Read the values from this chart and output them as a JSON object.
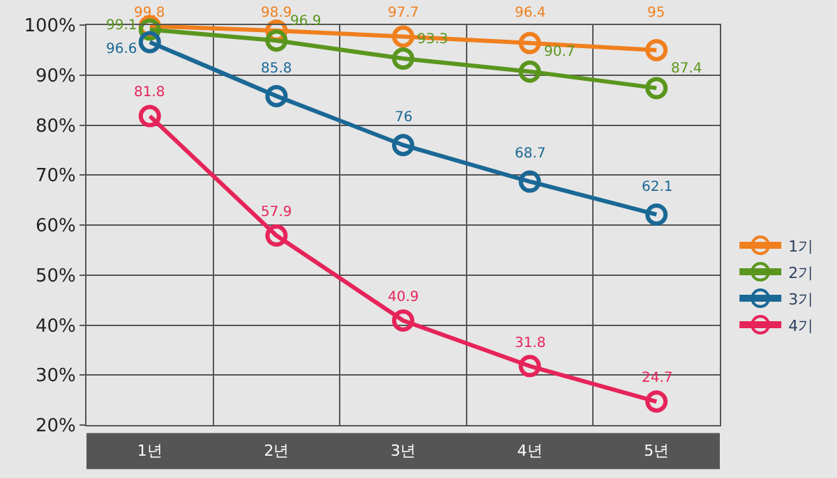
{
  "chart_data": {
    "type": "line",
    "categories": [
      "1년",
      "2년",
      "3년",
      "4년",
      "5년"
    ],
    "series": [
      {
        "name": "1기",
        "color": "#f07f1e",
        "values": [
          99.8,
          98.9,
          97.7,
          96.4,
          95
        ]
      },
      {
        "name": "2기",
        "color": "#5a961e",
        "values": [
          99.1,
          96.9,
          93.3,
          90.7,
          87.4
        ]
      },
      {
        "name": "3기",
        "color": "#1a6896",
        "values": [
          96.6,
          85.8,
          76,
          68.7,
          62.1
        ]
      },
      {
        "name": "4기",
        "color": "#e6245a",
        "values": [
          81.8,
          57.9,
          40.9,
          31.8,
          24.7
        ]
      }
    ],
    "ylim": [
      20,
      100
    ],
    "yticks": [
      {
        "value": 20,
        "label": "20%"
      },
      {
        "value": 30,
        "label": "30%"
      },
      {
        "value": 40,
        "label": "40%"
      },
      {
        "value": 50,
        "label": "50%"
      },
      {
        "value": 60,
        "label": "60%"
      },
      {
        "value": 70,
        "label": "70%"
      },
      {
        "value": 80,
        "label": "80%"
      },
      {
        "value": 90,
        "label": "90%"
      },
      {
        "value": 100,
        "label": "100%"
      }
    ],
    "grid": true,
    "legend": "right",
    "marker": "circle",
    "line_style": "solid",
    "data_labels": true
  }
}
